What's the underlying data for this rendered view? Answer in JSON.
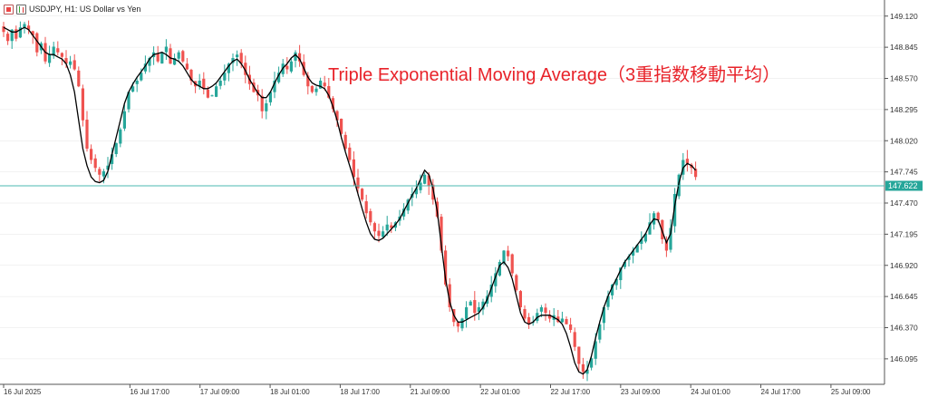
{
  "header": {
    "symbol_label": "USDJPY, H1:  US Dollar vs Yen"
  },
  "annotation": "Triple Exponential Moving Average（3重指数移動平均）",
  "colors": {
    "bull": "#26a69a",
    "bear": "#ef5350",
    "indicator": "#000000",
    "price_line": "#4bb8b0",
    "price_tag": "#26a69a",
    "grid": "#e6e6e6"
  },
  "icons": [
    "chart-window-icon",
    "candlestick-icon"
  ],
  "chart_data": {
    "type": "candlestick",
    "title": "USDJPY, H1:  US Dollar vs Yen",
    "ylim": [
      145.87,
      149.23
    ],
    "y_ticks": [
      "149.120",
      "148.845",
      "148.570",
      "148.295",
      "148.020",
      "147.745",
      "147.470",
      "147.195",
      "146.920",
      "146.645",
      "146.370",
      "146.095"
    ],
    "x_ticks": [
      "16 Jul 2025",
      "16 Jul 17:00",
      "17 Jul 09:00",
      "18 Jul 01:00",
      "18 Jul 17:00",
      "21 Jul 09:00",
      "22 Jul 01:00",
      "22 Jul 17:00",
      "23 Jul 09:00",
      "24 Jul 01:00",
      "24 Jul 17:00",
      "25 Jul 09:00"
    ],
    "current_price": "147.622",
    "series": [
      {
        "name": "USDJPY",
        "description": "hourly OHLC candles",
        "close": [
          148.98,
          148.9,
          149.0,
          148.92,
          149.02,
          149.05,
          149.0,
          148.95,
          148.8,
          148.88,
          148.72,
          148.78,
          148.85,
          148.8,
          148.76,
          148.7,
          148.72,
          148.65,
          148.5,
          148.2,
          147.95,
          147.85,
          147.78,
          147.72,
          147.75,
          147.8,
          147.9,
          148.0,
          148.12,
          148.28,
          148.45,
          148.5,
          148.55,
          148.62,
          148.7,
          148.75,
          148.8,
          148.72,
          148.8,
          148.85,
          148.7,
          148.75,
          148.8,
          148.72,
          148.65,
          148.55,
          148.5,
          148.55,
          148.48,
          148.4,
          148.42,
          148.5,
          148.55,
          148.62,
          148.7,
          148.75,
          148.78,
          148.7,
          148.6,
          148.52,
          148.45,
          148.42,
          148.28,
          148.35,
          148.45,
          148.55,
          148.62,
          148.7,
          148.65,
          148.72,
          148.8,
          148.72,
          148.6,
          148.5,
          148.45,
          148.48,
          148.55,
          148.5,
          148.4,
          148.3,
          148.2,
          148.08,
          147.95,
          147.85,
          147.7,
          147.6,
          147.5,
          147.38,
          147.3,
          147.22,
          147.18,
          147.22,
          147.28,
          147.25,
          147.3,
          147.35,
          147.42,
          147.5,
          147.55,
          147.6,
          147.65,
          147.72,
          147.62,
          147.5,
          147.35,
          147.05,
          146.75,
          146.55,
          146.42,
          146.38,
          146.45,
          146.55,
          146.6,
          146.5,
          146.55,
          146.6,
          146.65,
          146.75,
          146.85,
          146.95,
          147.05,
          147.0,
          146.85,
          146.7,
          146.55,
          146.45,
          146.4,
          146.42,
          146.5,
          146.55,
          146.5,
          146.45,
          146.48,
          146.42,
          146.45,
          146.4,
          146.35,
          146.2,
          146.05,
          145.98,
          146.0,
          146.1,
          146.25,
          146.4,
          146.55,
          146.65,
          146.75,
          146.8,
          146.9,
          146.95,
          147.0,
          147.05,
          147.1,
          147.15,
          147.2,
          147.3,
          147.38,
          147.32,
          147.15,
          147.05,
          147.25,
          147.55,
          147.72,
          147.85,
          147.82,
          147.78,
          147.7
        ]
      },
      {
        "name": "TEMA",
        "description": "Triple Exponential Moving Average line",
        "values": [
          149.02,
          149.0,
          148.98,
          148.98,
          149.0,
          149.02,
          149.0,
          148.95,
          148.9,
          148.85,
          148.8,
          148.78,
          148.78,
          148.76,
          148.74,
          148.7,
          148.6,
          148.45,
          148.2,
          147.95,
          147.8,
          147.7,
          147.66,
          147.65,
          147.67,
          147.75,
          147.9,
          148.05,
          148.2,
          148.35,
          148.45,
          148.52,
          148.58,
          148.63,
          148.68,
          148.74,
          148.78,
          148.79,
          148.8,
          148.78,
          148.75,
          148.74,
          148.72,
          148.68,
          148.62,
          148.56,
          148.52,
          148.5,
          148.48,
          148.48,
          148.5,
          148.53,
          148.58,
          148.63,
          148.68,
          148.72,
          148.74,
          148.7,
          148.64,
          148.56,
          148.5,
          148.44,
          148.4,
          148.4,
          148.45,
          148.53,
          148.6,
          148.66,
          148.7,
          148.75,
          148.78,
          148.74,
          148.66,
          148.58,
          148.53,
          148.51,
          148.5,
          148.48,
          148.42,
          148.32,
          148.2,
          148.05,
          147.92,
          147.8,
          147.68,
          147.55,
          147.42,
          147.3,
          147.2,
          147.15,
          147.14,
          147.16,
          147.2,
          147.24,
          147.28,
          147.33,
          147.4,
          147.47,
          147.54,
          147.6,
          147.68,
          147.76,
          147.72,
          147.6,
          147.4,
          147.1,
          146.8,
          146.6,
          146.48,
          146.42,
          146.42,
          146.44,
          146.46,
          146.48,
          146.5,
          146.55,
          146.62,
          146.72,
          146.82,
          146.92,
          146.95,
          146.9,
          146.8,
          146.65,
          146.5,
          146.42,
          146.4,
          146.42,
          146.46,
          146.48,
          146.48,
          146.48,
          146.46,
          146.44,
          146.4,
          146.32,
          146.2,
          146.06,
          145.98,
          145.96,
          146.0,
          146.12,
          146.28,
          146.42,
          146.55,
          146.65,
          146.73,
          146.8,
          146.88,
          146.95,
          147.0,
          147.05,
          147.1,
          147.15,
          147.2,
          147.28,
          147.33,
          147.32,
          147.22,
          147.12,
          147.2,
          147.45,
          147.65,
          147.78,
          147.82,
          147.8,
          147.76
        ]
      }
    ]
  }
}
